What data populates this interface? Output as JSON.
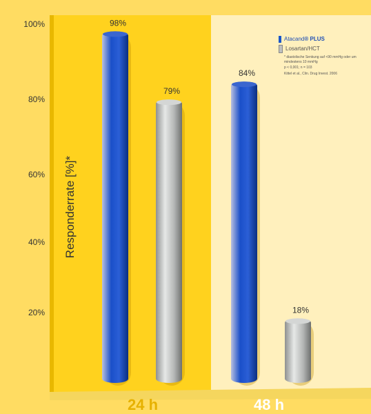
{
  "chart_data": {
    "type": "bar",
    "ylabel": "Responderrate [%]*",
    "ylim": [
      0,
      100
    ],
    "y_ticks": [
      "20%",
      "40%",
      "60%",
      "80%",
      "100%"
    ],
    "categories": [
      "24 h",
      "48 h"
    ],
    "series": [
      {
        "name": "Atacand® PLUS",
        "values": [
          98,
          84
        ],
        "color": "#1a56c9"
      },
      {
        "name": "Losartan/HCT",
        "values": [
          79,
          18
        ],
        "color": "#c8cac9"
      }
    ],
    "data_labels": [
      [
        "98%",
        "84%"
      ],
      [
        "79%",
        "18%"
      ]
    ],
    "legend_position": "top-right",
    "grid": false
  },
  "legend": {
    "blue_prefix": "Atacand",
    "blue_suffix": "® PLUS",
    "grey_label": "Losartan/HCT",
    "footnote": "* diastolische Senkung auf <90 mmHg oder um mindestens 10 mmHg",
    "stat": "p < 0,001; n = 103",
    "source": "Kittel et al., Clin. Drug Invest. 2006"
  },
  "colors": {
    "left_panel": "#ffd21e",
    "right_panel": "#fff0bd",
    "blue_bar": "#1a56c9",
    "grey_bar": "#c8cac9",
    "category_left_text": "#e6b100",
    "category_right_text": "#ffffff",
    "tick_text": "#333333"
  }
}
